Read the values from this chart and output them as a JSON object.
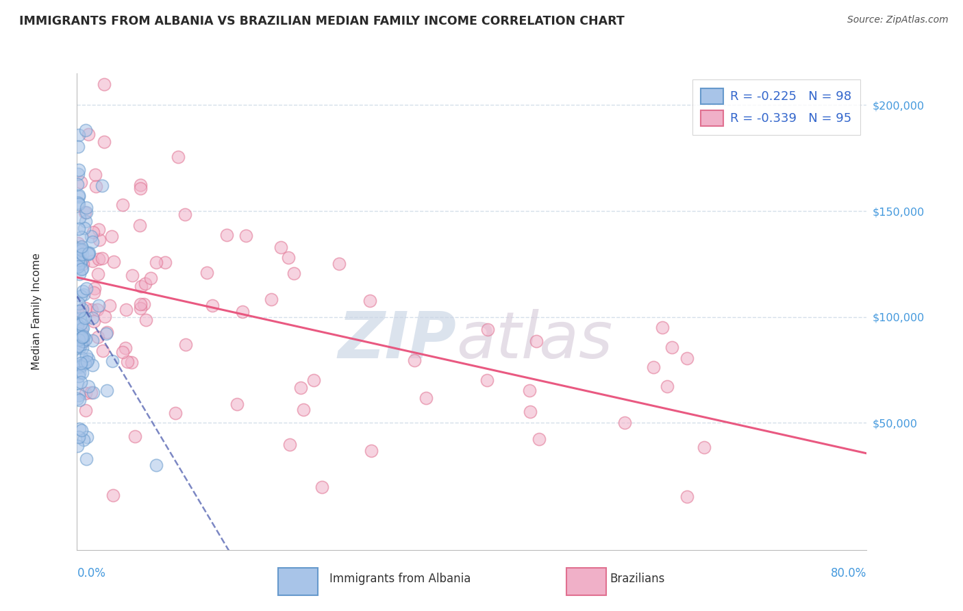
{
  "title": "IMMIGRANTS FROM ALBANIA VS BRAZILIAN MEDIAN FAMILY INCOME CORRELATION CHART",
  "source": "Source: ZipAtlas.com",
  "ylabel": "Median Family Income",
  "watermark_zip": "ZIP",
  "watermark_atlas": "atlas",
  "legend_albania_R": -0.225,
  "legend_albania_N": 98,
  "legend_brazil_R": -0.339,
  "legend_brazil_N": 95,
  "albania_color_face": "#a8c4e8",
  "albania_color_edge": "#6699cc",
  "brazil_color_face": "#f0b0c8",
  "brazil_color_edge": "#e07090",
  "albania_trend_color": "#4455aa",
  "brazil_trend_color": "#e8507a",
  "background_color": "#ffffff",
  "grid_color": "#d0dce8",
  "title_color": "#2a2a2a",
  "source_color": "#555555",
  "yaxis_label_color": "#4499dd",
  "xaxis_label_color": "#4499dd",
  "legend_text_color": "#3366cc",
  "bottom_legend_text_color": "#333333",
  "ymin": -10000,
  "ymax": 215000,
  "xmin": 0.0,
  "xmax": 0.8,
  "marker_size": 170,
  "marker_alpha": 0.55,
  "seed": 12345
}
